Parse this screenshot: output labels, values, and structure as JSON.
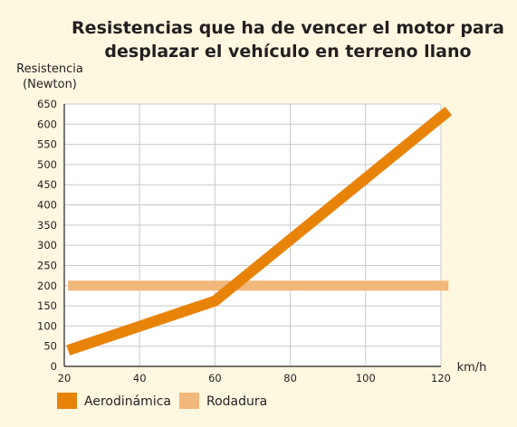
{
  "chart_data": {
    "type": "line",
    "title": [
      "Resistencias que ha de vencer el motor para",
      "desplazar el vehículo en terreno llano"
    ],
    "ylabel": [
      "Resistencia",
      "(Newton)"
    ],
    "xlabel": "km/h",
    "xlim": [
      20,
      120
    ],
    "ylim": [
      0,
      650
    ],
    "x_ticks": [
      20,
      40,
      60,
      80,
      100,
      120
    ],
    "y_ticks": [
      0,
      50,
      100,
      150,
      200,
      250,
      300,
      350,
      400,
      450,
      500,
      550,
      600,
      650
    ],
    "grid": true,
    "legend_position": "bottom-left",
    "series": [
      {
        "name": "Aerodinámica",
        "color": "#e8830a",
        "points": [
          [
            21,
            40
          ],
          [
            60,
            162
          ],
          [
            122,
            633
          ]
        ]
      },
      {
        "name": "Rodadura",
        "color": "#f2b77a",
        "points": [
          [
            21,
            200
          ],
          [
            122,
            200
          ]
        ]
      }
    ]
  }
}
